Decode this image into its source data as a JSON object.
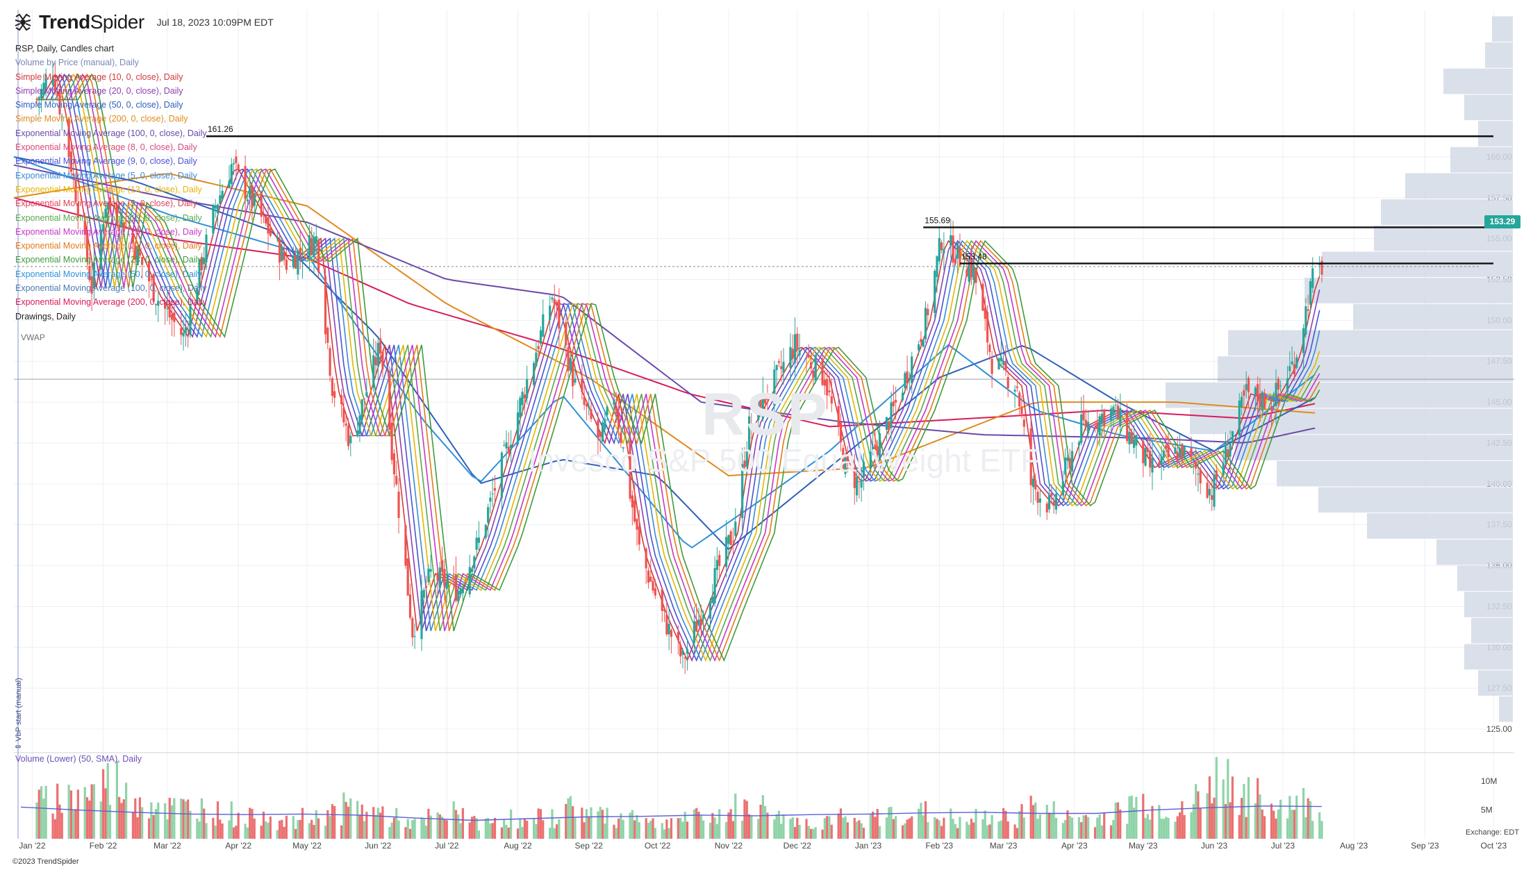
{
  "header": {
    "brand_light": "Trend",
    "brand_bold": "Spider",
    "timestamp": "Jul 18, 2023 10:09PM EDT"
  },
  "legend": [
    {
      "text": "RSP, Daily, Candles chart",
      "color": "#222222"
    },
    {
      "text": "Volume by Price (manual), Daily",
      "color": "#7a86b8"
    },
    {
      "text": "Simple Moving Average (10, 0, close), Daily",
      "color": "#d23a3a"
    },
    {
      "text": "Simple Moving Average (20, 0, close), Daily",
      "color": "#8c3fb4"
    },
    {
      "text": "Simple Moving Average (50, 0, close), Daily",
      "color": "#2d5fb8"
    },
    {
      "text": "Simple Moving Average (200, 0, close), Daily",
      "color": "#e08a1e"
    },
    {
      "text": "Exponential Moving Average (100, 0, close), Daily",
      "color": "#6a49a8"
    },
    {
      "text": "Exponential Moving Average (8, 0, close), Daily",
      "color": "#d64a7a"
    },
    {
      "text": "Exponential Moving Average (9, 0, close), Daily",
      "color": "#4b52d1"
    },
    {
      "text": "Exponential Moving Average (5, 0, close), Daily",
      "color": "#3a8bd6"
    },
    {
      "text": "Exponential Moving Average (13, 0, close), Daily",
      "color": "#e6b400"
    },
    {
      "text": "Exponential Moving Average (5, 0, close), Daily",
      "color": "#e0405a"
    },
    {
      "text": "Exponential Moving Average (10, 0, close), Daily",
      "color": "#58a84a"
    },
    {
      "text": "Exponential Moving Average (20, 0, close), Daily",
      "color": "#c637c6"
    },
    {
      "text": "Exponential Moving Average (21, 0, close), Daily",
      "color": "#e07b1a"
    },
    {
      "text": "Exponential Moving Average (23, 0, close), Daily",
      "color": "#3f9a3a"
    },
    {
      "text": "Exponential Moving Average (50, 0, close), Daily",
      "color": "#2f8fd8"
    },
    {
      "text": "Exponential Moving Average (100, 0, close), Daily",
      "color": "#4b79b0"
    },
    {
      "text": "Exponential Moving Average (200, 0, close), Daily",
      "color": "#d81b5a"
    },
    {
      "text": "Drawings, Daily",
      "color": "#222222"
    }
  ],
  "vwap_label": "VWAP",
  "volume_title": "Volume (Lower) (50, SMA), Daily",
  "vbp_tag": "⇕ VbP start (manual)",
  "exchange_label": "Exchange: EDT",
  "copyright": "©2023 TrendSpider",
  "watermark_symbol": "RSP",
  "watermark_name": "Invesco S&P 500 Equal Weight ETF",
  "last_price_label": "153.29",
  "colors": {
    "up": "#26a69a",
    "down": "#ef5350",
    "up_vol": "#8fd3a8",
    "down_vol": "#ec7070",
    "profile": "#d3dae6",
    "grid": "#eceff3"
  },
  "chart_data": {
    "type": "candlestick",
    "x_range": [
      "2021-12-24",
      "2023-10-10"
    ],
    "ylim": [
      123.6,
      169.0
    ],
    "x_ticks": [
      "Jan '22",
      "Feb '22",
      "Mar '22",
      "Apr '22",
      "May '22",
      "Jun '22",
      "Jul '22",
      "Aug '22",
      "Sep '22",
      "Oct '22",
      "Nov '22",
      "Dec '22",
      "Jan '23",
      "Feb '23",
      "Mar '23",
      "Apr '23",
      "May '23",
      "Jun '23",
      "Jul '23",
      "Aug '23",
      "Sep '23",
      "Oct '23"
    ],
    "y_ticks": [
      125.0,
      127.5,
      130.0,
      132.5,
      135.0,
      137.5,
      140.0,
      142.5,
      145.0,
      147.5,
      150.0,
      152.5,
      155.0,
      157.5,
      160.0
    ],
    "volume_ticks": [
      "5M",
      "10M"
    ],
    "volume_axis_max_m": 14,
    "price_path": [
      [
        "2022-01-03",
        163.5
      ],
      [
        "2022-01-10",
        165.3
      ],
      [
        "2022-01-18",
        159.5
      ],
      [
        "2022-01-27",
        152.0
      ],
      [
        "2022-02-02",
        157.2
      ],
      [
        "2022-02-10",
        156.0
      ],
      [
        "2022-02-24",
        151.5
      ],
      [
        "2022-03-08",
        149.0
      ],
      [
        "2022-03-22",
        157.0
      ],
      [
        "2022-03-29",
        159.5
      ],
      [
        "2022-04-08",
        157.0
      ],
      [
        "2022-04-22",
        153.5
      ],
      [
        "2022-05-05",
        155.0
      ],
      [
        "2022-05-12",
        146.0
      ],
      [
        "2022-05-20",
        142.5
      ],
      [
        "2022-06-02",
        148.5
      ],
      [
        "2022-06-16",
        131.0
      ],
      [
        "2022-06-24",
        134.5
      ],
      [
        "2022-07-06",
        133.5
      ],
      [
        "2022-07-15",
        136.5
      ],
      [
        "2022-07-29",
        143.0
      ],
      [
        "2022-08-16",
        151.5
      ],
      [
        "2022-08-26",
        146.0
      ],
      [
        "2022-09-06",
        142.5
      ],
      [
        "2022-09-12",
        145.5
      ],
      [
        "2022-09-23",
        136.0
      ],
      [
        "2022-10-03",
        132.0
      ],
      [
        "2022-10-12",
        129.2
      ],
      [
        "2022-10-21",
        132.5
      ],
      [
        "2022-11-03",
        137.0
      ],
      [
        "2022-11-10",
        143.5
      ],
      [
        "2022-11-30",
        148.5
      ],
      [
        "2022-12-13",
        146.5
      ],
      [
        "2022-12-22",
        141.0
      ],
      [
        "2022-12-28",
        140.0
      ],
      [
        "2023-01-12",
        144.5
      ],
      [
        "2023-01-26",
        150.0
      ],
      [
        "2023-02-02",
        155.0
      ],
      [
        "2023-02-16",
        153.0
      ],
      [
        "2023-02-24",
        147.5
      ],
      [
        "2023-03-07",
        146.0
      ],
      [
        "2023-03-13",
        140.0
      ],
      [
        "2023-03-22",
        138.5
      ],
      [
        "2023-04-04",
        143.5
      ],
      [
        "2023-04-18",
        144.5
      ],
      [
        "2023-05-04",
        141.0
      ],
      [
        "2023-05-18",
        142.0
      ],
      [
        "2023-05-31",
        139.5
      ],
      [
        "2023-06-15",
        145.5
      ],
      [
        "2023-06-26",
        145.0
      ],
      [
        "2023-07-06",
        147.5
      ],
      [
        "2023-07-14",
        152.5
      ],
      [
        "2023-07-18",
        153.29
      ]
    ],
    "horizontal_levels": [
      {
        "value": 161.26,
        "label": "161.26",
        "from": "2022-03-18",
        "to": "2023-10-10"
      },
      {
        "value": 155.69,
        "label": "155.69",
        "from": "2023-01-25",
        "to": "2023-10-10"
      },
      {
        "value": 153.48,
        "label": "153.48",
        "from": "2023-02-10",
        "to": "2023-10-10"
      }
    ],
    "vwap_level": 146.4,
    "last_price": 153.29,
    "moving_averages": [
      {
        "name": "EMA 200",
        "color": "#d81b5a",
        "path": [
          [
            "2021-12-24",
            157.5
          ],
          [
            "2022-03-01",
            155.0
          ],
          [
            "2022-05-01",
            153.8
          ],
          [
            "2022-06-15",
            151.0
          ],
          [
            "2022-08-15",
            148.5
          ],
          [
            "2022-10-15",
            145.5
          ],
          [
            "2022-12-15",
            143.5
          ],
          [
            "2023-02-15",
            144.0
          ],
          [
            "2023-04-15",
            144.5
          ],
          [
            "2023-06-15",
            144.0
          ],
          [
            "2023-07-18",
            145.0
          ]
        ]
      },
      {
        "name": "SMA 200",
        "color": "#e08a1e",
        "path": [
          [
            "2021-12-24",
            157.5
          ],
          [
            "2022-03-01",
            159.0
          ],
          [
            "2022-05-01",
            157.0
          ],
          [
            "2022-07-01",
            151.0
          ],
          [
            "2022-09-01",
            146.5
          ],
          [
            "2022-11-01",
            140.5
          ],
          [
            "2023-01-01",
            141.0
          ],
          [
            "2023-03-15",
            145.0
          ],
          [
            "2023-05-15",
            145.0
          ],
          [
            "2023-07-18",
            144.3
          ]
        ]
      },
      {
        "name": "EMA 100",
        "color": "#6a49a8",
        "path": [
          [
            "2021-12-24",
            159.5
          ],
          [
            "2022-03-01",
            157.5
          ],
          [
            "2022-05-01",
            156.0
          ],
          [
            "2022-07-01",
            152.5
          ],
          [
            "2022-08-20",
            151.5
          ],
          [
            "2022-10-20",
            145.0
          ],
          [
            "2022-12-20",
            143.8
          ],
          [
            "2023-02-20",
            143.0
          ],
          [
            "2023-05-01",
            142.8
          ],
          [
            "2023-06-15",
            142.5
          ],
          [
            "2023-07-18",
            143.5
          ]
        ]
      },
      {
        "name": "SMA 50",
        "color": "#2d5fb8",
        "path": [
          [
            "2021-12-24",
            160.0
          ],
          [
            "2022-02-15",
            158.5
          ],
          [
            "2022-04-15",
            155.5
          ],
          [
            "2022-06-01",
            149.0
          ],
          [
            "2022-07-15",
            140.0
          ],
          [
            "2022-08-20",
            141.5
          ],
          [
            "2022-10-01",
            140.5
          ],
          [
            "2022-11-01",
            136.0
          ],
          [
            "2022-12-15",
            141.0
          ],
          [
            "2023-02-01",
            146.5
          ],
          [
            "2023-03-10",
            148.5
          ],
          [
            "2023-04-20",
            145.0
          ],
          [
            "2023-06-01",
            142.0
          ],
          [
            "2023-07-18",
            145.5
          ]
        ]
      },
      {
        "name": "EMA 50",
        "color": "#2f8fd8",
        "path": [
          [
            "2021-12-24",
            160.0
          ],
          [
            "2022-03-01",
            156.5
          ],
          [
            "2022-05-01",
            154.0
          ],
          [
            "2022-06-20",
            144.0
          ],
          [
            "2022-07-15",
            140.0
          ],
          [
            "2022-08-20",
            145.5
          ],
          [
            "2022-10-15",
            136.0
          ],
          [
            "2022-11-15",
            139.0
          ],
          [
            "2022-12-15",
            142.0
          ],
          [
            "2023-02-05",
            148.5
          ],
          [
            "2023-03-15",
            144.5
          ],
          [
            "2023-04-20",
            143.0
          ],
          [
            "2023-06-01",
            142.0
          ],
          [
            "2023-07-18",
            147.0
          ]
        ]
      }
    ],
    "volume_m": [
      7,
      8,
      9,
      11,
      8,
      7,
      6,
      6,
      5,
      4,
      5,
      3,
      4,
      5,
      6,
      5,
      4,
      3,
      4,
      5,
      3,
      4,
      3,
      4,
      6,
      5,
      4,
      5,
      3,
      4,
      4,
      5,
      6,
      6,
      4,
      3,
      4,
      3,
      4,
      5,
      5,
      4,
      3,
      4,
      4,
      6,
      5,
      4,
      4,
      5,
      7,
      6,
      5,
      9,
      12,
      8,
      6,
      7,
      6
    ],
    "volume_sma_m": [
      5.5,
      5.0,
      4.6,
      4.3,
      4.2,
      4.3,
      4.1,
      3.6,
      3.2,
      3.5,
      3.8,
      3.9,
      4.1,
      4.0,
      4.2,
      4.3,
      4.5,
      4.6,
      4.4,
      4.4,
      5.0,
      5.4,
      5.7,
      5.6
    ],
    "volume_profile": [
      {
        "price": 126.2,
        "size": 0.04
      },
      {
        "price": 127.8,
        "size": 0.1
      },
      {
        "price": 129.4,
        "size": 0.14
      },
      {
        "price": 131.0,
        "size": 0.12
      },
      {
        "price": 132.6,
        "size": 0.14
      },
      {
        "price": 134.2,
        "size": 0.16
      },
      {
        "price": 135.8,
        "size": 0.22
      },
      {
        "price": 137.4,
        "size": 0.42
      },
      {
        "price": 139.0,
        "size": 0.56
      },
      {
        "price": 140.6,
        "size": 0.68
      },
      {
        "price": 142.2,
        "size": 0.8
      },
      {
        "price": 143.8,
        "size": 0.93
      },
      {
        "price": 145.4,
        "size": 1.0
      },
      {
        "price": 147.0,
        "size": 0.85
      },
      {
        "price": 148.6,
        "size": 0.82
      },
      {
        "price": 150.2,
        "size": 0.46
      },
      {
        "price": 151.8,
        "size": 0.6
      },
      {
        "price": 153.4,
        "size": 0.55
      },
      {
        "price": 155.0,
        "size": 0.4
      },
      {
        "price": 156.6,
        "size": 0.38
      },
      {
        "price": 158.2,
        "size": 0.31
      },
      {
        "price": 159.8,
        "size": 0.18
      },
      {
        "price": 161.4,
        "size": 0.1
      },
      {
        "price": 163.0,
        "size": 0.14
      },
      {
        "price": 164.6,
        "size": 0.2
      },
      {
        "price": 166.2,
        "size": 0.08
      },
      {
        "price": 167.8,
        "size": 0.06
      }
    ]
  }
}
